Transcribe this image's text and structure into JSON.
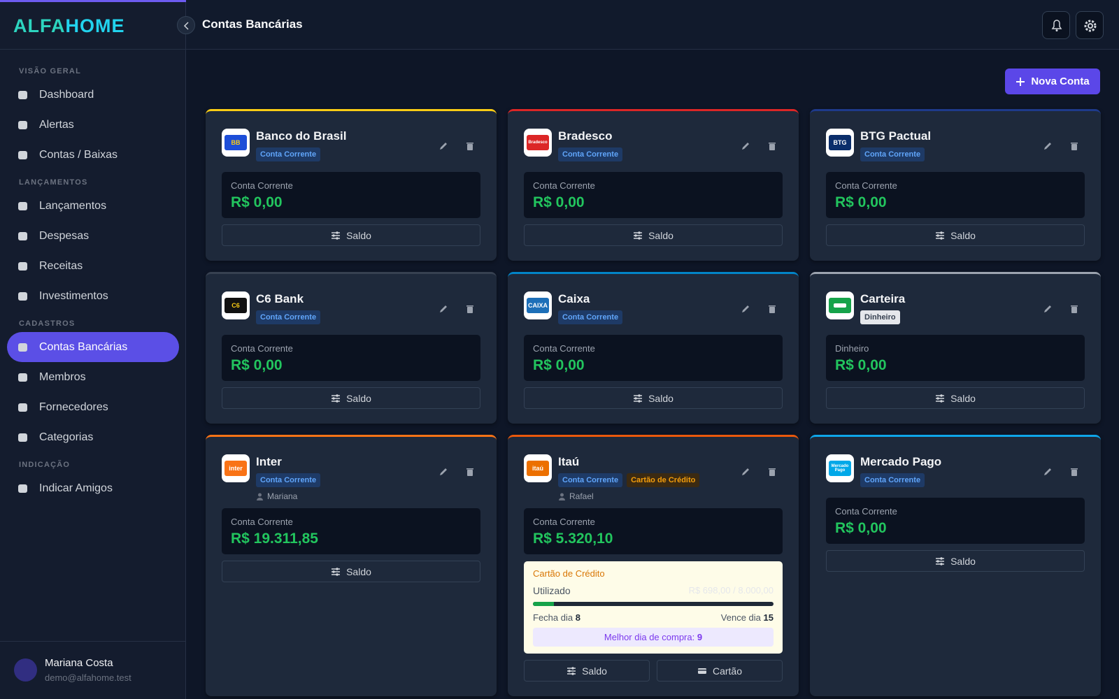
{
  "brand": {
    "first": "ALFA",
    "second": "HOME"
  },
  "header": {
    "title": "Contas Bancárias"
  },
  "sidebar": {
    "sections": [
      {
        "title": "VISÃO GERAL",
        "items": [
          "Dashboard",
          "Alertas",
          "Contas / Baixas"
        ]
      },
      {
        "title": "LANÇAMENTOS",
        "items": [
          "Lançamentos",
          "Despesas",
          "Receitas",
          "Investimentos"
        ]
      },
      {
        "title": "CADASTROS",
        "items": [
          "Contas Bancárias",
          "Membros",
          "Fornecedores",
          "Categorias"
        ]
      },
      {
        "title": "INDICAÇÃO",
        "items": [
          "Indicar Amigos"
        ]
      }
    ],
    "active": "Contas Bancárias"
  },
  "user": {
    "name": "Mariana Costa",
    "email": "demo@alfahome.test"
  },
  "new_account_button": "Nova Conta",
  "accounts": [
    {
      "name": "Banco do Brasil",
      "color": "#facc15",
      "logo": {
        "text": "BB",
        "bg": "#1d4ed8",
        "fg": "#facc15"
      },
      "tags": [
        {
          "text": "Conta Corrente",
          "style": "blue"
        }
      ],
      "balance_label": "Conta Corrente",
      "balance": "R$ 0,00",
      "actions": [
        "Saldo"
      ]
    },
    {
      "name": "Bradesco",
      "color": "#dc2626",
      "logo": {
        "text": "Bradesco",
        "bg": "#dc2626",
        "fg": "#ffffff"
      },
      "tags": [
        {
          "text": "Conta Corrente",
          "style": "blue"
        }
      ],
      "balance_label": "Conta Corrente",
      "balance": "R$ 0,00",
      "actions": [
        "Saldo"
      ]
    },
    {
      "name": "BTG Pactual",
      "color": "#1e3a8a",
      "logo": {
        "text": "BTG",
        "bg": "#0b2e6b",
        "fg": "#ffffff"
      },
      "tags": [
        {
          "text": "Conta Corrente",
          "style": "blue"
        }
      ],
      "balance_label": "Conta Corrente",
      "balance": "R$ 0,00",
      "actions": [
        "Saldo"
      ]
    },
    {
      "name": "C6 Bank",
      "color": "#374151",
      "logo": {
        "text": "C6",
        "bg": "#111111",
        "fg": "#facc15"
      },
      "tags": [
        {
          "text": "Conta Corrente",
          "style": "blue"
        }
      ],
      "balance_label": "Conta Corrente",
      "balance": "R$ 0,00",
      "actions": [
        "Saldo"
      ]
    },
    {
      "name": "Caixa",
      "color": "#0284c7",
      "logo": {
        "text": "CAIXA",
        "bg": "#1d6fb8",
        "fg": "#ffffff"
      },
      "tags": [
        {
          "text": "Conta Corrente",
          "style": "blue"
        }
      ],
      "balance_label": "Conta Corrente",
      "balance": "R$ 0,00",
      "actions": [
        "Saldo"
      ]
    },
    {
      "name": "Carteira",
      "color": "#9ca3af",
      "logo": {
        "bg": "#16a34a"
      },
      "tags": [
        {
          "text": "Dinheiro",
          "style": "white"
        }
      ],
      "balance_label": "Dinheiro",
      "balance": "R$ 0,00",
      "actions": [
        "Saldo"
      ]
    },
    {
      "name": "Inter",
      "color": "#f97316",
      "logo": {
        "text": "inter",
        "bg": "#f97316",
        "fg": "#ffffff"
      },
      "tags": [
        {
          "text": "Conta Corrente",
          "style": "blue"
        }
      ],
      "owner": "Mariana",
      "balance_label": "Conta Corrente",
      "balance": "R$ 19.311,85",
      "actions": [
        "Saldo"
      ]
    },
    {
      "name": "Itaú",
      "color": "#ea580c",
      "logo": {
        "text": "itaú",
        "bg": "#ec7000",
        "fg": "#ffffff"
      },
      "tags": [
        {
          "text": "Conta Corrente",
          "style": "blue"
        },
        {
          "text": "Cartão de Crédito",
          "style": "orange"
        }
      ],
      "owner": "Rafael",
      "balance_label": "Conta Corrente",
      "balance": "R$ 5.320,10",
      "credit": {
        "title": "Cartão de Crédito",
        "used_label": "Utilizado",
        "used_text": "R$ 698,00 / 8.000,00",
        "used": 698,
        "limit": 8000,
        "closes_label": "Fecha dia",
        "closes": "8",
        "due_label": "Vence dia",
        "due": "15",
        "best_label": "Melhor dia de compra:",
        "best": "9"
      },
      "actions": [
        "Saldo",
        "Cartão"
      ]
    },
    {
      "name": "Mercado Pago",
      "color": "#0ea5e9",
      "logo": {
        "text": "Mercado Pago",
        "bg": "#00a8e8",
        "fg": "#ffffff"
      },
      "tags": [
        {
          "text": "Conta Corrente",
          "style": "blue"
        }
      ],
      "balance_label": "Conta Corrente",
      "balance": "R$ 0,00",
      "actions": [
        "Saldo"
      ]
    }
  ]
}
